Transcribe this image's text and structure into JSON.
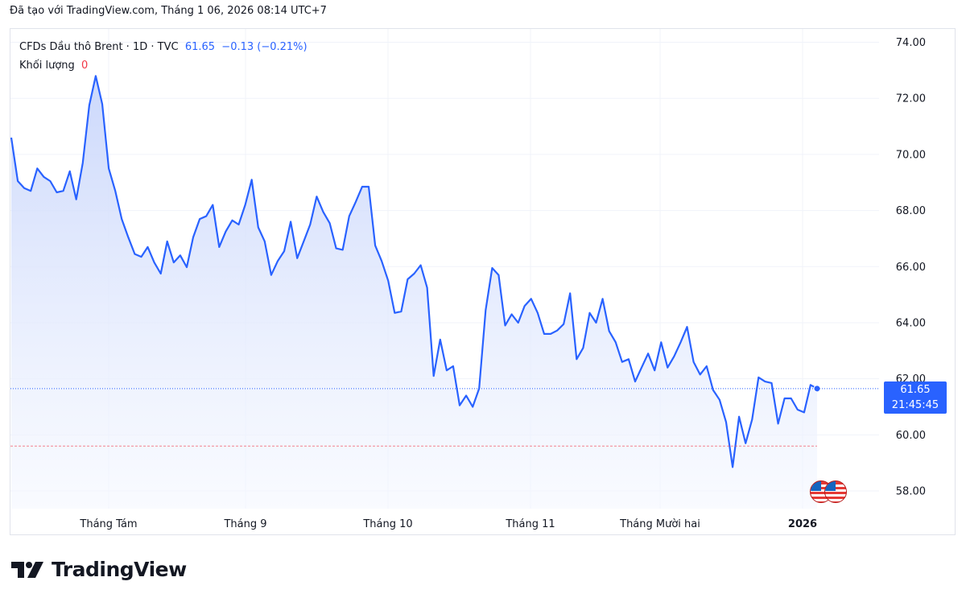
{
  "caption": "Đã tạo với TradingView.com, Tháng 1 06, 2026 08:14 UTC+7",
  "legend": {
    "symbol": "CFDs Dầu thô Brent · 1D · TVC",
    "last": "61.65",
    "change": "−0.13 (−0.21%)",
    "volume_label": "Khối lượng",
    "volume_value": "0"
  },
  "price_tag": {
    "price": "61.65",
    "countdown": "21:45:45"
  },
  "brand": "TradingView",
  "icons": [
    "tradingview-logo-icon",
    "us-flag-icon"
  ],
  "colors": {
    "line": "#2962ff",
    "area_top": "#c9d6fb",
    "area_bottom": "#f5f8ff",
    "red_line": "#f23645",
    "grid": "#f0f3fa"
  },
  "chart_data": {
    "type": "area",
    "title": "CFDs Dầu thô Brent · 1D · TVC",
    "xlabel": "",
    "ylabel": "",
    "ylim": [
      57.2,
      74.5
    ],
    "y_ticks": [
      "58.00",
      "60.00",
      "62.00",
      "64.00",
      "66.00",
      "68.00",
      "70.00",
      "72.00",
      "74.00"
    ],
    "x_ticks": [
      "Tháng Tám",
      "Tháng 9",
      "Tháng 10",
      "Tháng 11",
      "Tháng Mười hai",
      "2026"
    ],
    "reference_price": 59.6,
    "grid": true,
    "series": [
      {
        "values": [
          70.6,
          69.05,
          68.8,
          68.7,
          69.5,
          69.2,
          69.05,
          68.65,
          68.7,
          69.4,
          68.4,
          69.7,
          71.75,
          72.8,
          71.8,
          69.5,
          68.7,
          67.7,
          67.05,
          66.45,
          66.35,
          66.7,
          66.15,
          65.75,
          66.9,
          66.15,
          66.4,
          65.98,
          67.05,
          67.7,
          67.8,
          68.2,
          66.7,
          67.25,
          67.65,
          67.5,
          68.2,
          69.1,
          67.4,
          66.9,
          65.7,
          66.2,
          66.55,
          67.6,
          66.3,
          66.9,
          67.5,
          68.5,
          67.95,
          67.55,
          66.65,
          66.6,
          67.8,
          68.3,
          68.85,
          68.85,
          66.75,
          66.2,
          65.5,
          64.35,
          64.4,
          65.55,
          65.75,
          66.05,
          65.25,
          62.1,
          63.4,
          62.3,
          62.45,
          61.05,
          61.4,
          61.0,
          61.65,
          64.45,
          65.95,
          65.7,
          63.9,
          64.3,
          64.0,
          64.6,
          64.85,
          64.35,
          63.6,
          63.6,
          63.72,
          63.95,
          65.05,
          62.7,
          63.1,
          64.35,
          64.0,
          64.85,
          63.7,
          63.3,
          62.6,
          62.7,
          61.9,
          62.4,
          62.9,
          62.3,
          63.3,
          62.4,
          62.8,
          63.3,
          63.85,
          62.6,
          62.15,
          62.45,
          61.6,
          61.25,
          60.45,
          58.85,
          60.65,
          59.7,
          60.55,
          62.05,
          61.9,
          61.85,
          60.4,
          61.3,
          61.3,
          60.9,
          60.8,
          61.78,
          61.65
        ]
      }
    ]
  }
}
